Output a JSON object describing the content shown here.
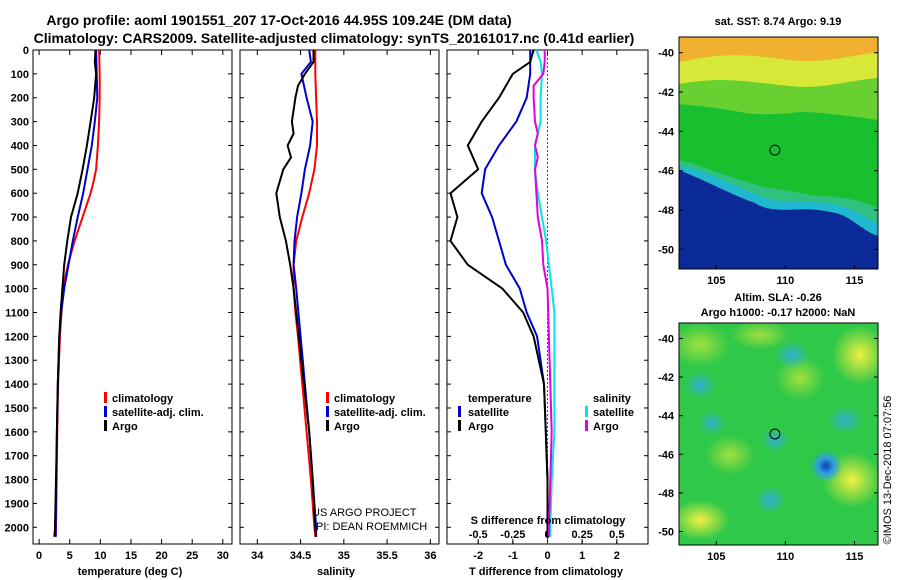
{
  "header": {
    "title_line1": "Argo profile: aoml 1901551_207 17-Oct-2016 44.95S 109.24E (DM data)",
    "title_line2": "Climatology: CARS2009. Satellite-adjusted climatology: synTS_20161017.nc (0.41d earlier)"
  },
  "colors": {
    "climatology": "#ff0000",
    "satellite_adj": "#0000cc",
    "argo": "#000000",
    "sal_satellite": "#00e5e5",
    "sal_argo": "#e000e0",
    "zero_line": "#ff0000"
  },
  "chart_data": [
    {
      "id": "temperature",
      "type": "line",
      "xlabel": "temperature (deg C)",
      "ylabel": "",
      "xlim": [
        -1,
        31.5
      ],
      "ylim": [
        2070,
        0
      ],
      "xticks": [
        0,
        5,
        10,
        15,
        20,
        25,
        30
      ],
      "yticks": [
        0,
        100,
        200,
        300,
        400,
        500,
        600,
        700,
        800,
        900,
        1000,
        1100,
        1200,
        1300,
        1400,
        1500,
        1600,
        1700,
        1800,
        1900,
        2000
      ],
      "legend": [
        "climatology",
        "satellite-adj. clim.",
        "Argo"
      ],
      "series": [
        {
          "name": "climatology",
          "color_key": "climatology",
          "depth": [
            0,
            100,
            200,
            300,
            400,
            500,
            550,
            600,
            700,
            800,
            900,
            1000,
            1200,
            1400,
            1600,
            1800,
            2000,
            2040
          ],
          "values": [
            9.8,
            9.9,
            9.9,
            9.8,
            9.6,
            9.3,
            8.9,
            8.4,
            7.1,
            5.8,
            4.7,
            3.9,
            3.4,
            3.1,
            2.95,
            2.85,
            2.75,
            2.7
          ]
        },
        {
          "name": "satellite-adj. clim.",
          "color_key": "satellite_adj",
          "depth": [
            0,
            100,
            200,
            300,
            400,
            500,
            600,
            700,
            800,
            900,
            1000,
            1100,
            1200,
            1400,
            1600,
            1800,
            2000,
            2040
          ],
          "values": [
            9.3,
            9.4,
            9.5,
            9.1,
            8.6,
            7.9,
            7.2,
            6.3,
            5.5,
            4.8,
            4.1,
            3.6,
            3.3,
            3.05,
            2.9,
            2.8,
            2.7,
            2.7
          ]
        },
        {
          "name": "Argo",
          "color_key": "argo",
          "depth": [
            0,
            50,
            100,
            200,
            300,
            400,
            500,
            600,
            700,
            800,
            900,
            1000,
            1100,
            1200,
            1400,
            1600,
            1800,
            2000,
            2040
          ],
          "values": [
            9.2,
            9.1,
            9.3,
            9.0,
            8.4,
            7.8,
            7.1,
            6.3,
            5.2,
            4.6,
            4.1,
            3.8,
            3.5,
            3.3,
            3.05,
            2.9,
            2.75,
            2.6,
            2.5
          ]
        }
      ]
    },
    {
      "id": "salinity",
      "type": "line",
      "xlabel": "salinity",
      "ylabel": "",
      "xlim": [
        33.8,
        36.1
      ],
      "ylim": [
        2070,
        0
      ],
      "xticks": [
        34,
        34.5,
        35,
        35.5,
        36
      ],
      "xticklabels": [
        "34",
        "34.5",
        "35",
        "35.5",
        "36"
      ],
      "legend": [
        "climatology",
        "satellite-adj. clim.",
        "Argo"
      ],
      "annotations": [
        "US ARGO PROJECT",
        "PI: DEAN ROEMMICH"
      ],
      "series": [
        {
          "name": "climatology",
          "color_key": "climatology",
          "depth": [
            0,
            100,
            200,
            300,
            400,
            500,
            600,
            700,
            800,
            900,
            1000,
            1100,
            1200,
            1400,
            1600,
            1800,
            2000,
            2040
          ],
          "values": [
            34.67,
            34.67,
            34.68,
            34.69,
            34.69,
            34.66,
            34.6,
            34.52,
            34.45,
            34.42,
            34.42,
            34.44,
            34.47,
            34.52,
            34.57,
            34.62,
            34.66,
            34.67
          ]
        },
        {
          "name": "satellite-adj. clim.",
          "color_key": "satellite_adj",
          "depth": [
            0,
            50,
            100,
            200,
            300,
            400,
            500,
            600,
            700,
            800,
            900,
            1000,
            1200,
            1400,
            1600,
            1800,
            2000,
            2040
          ],
          "values": [
            34.6,
            34.62,
            34.51,
            34.57,
            34.64,
            34.61,
            34.55,
            34.51,
            34.46,
            34.43,
            34.42,
            34.45,
            34.5,
            34.55,
            34.6,
            34.64,
            34.68,
            34.68
          ]
        },
        {
          "name": "Argo",
          "color_key": "argo",
          "depth": [
            0,
            50,
            100,
            150,
            200,
            300,
            350,
            400,
            450,
            500,
            600,
            700,
            800,
            900,
            1000,
            1200,
            1400,
            1600,
            1800,
            2000,
            2040
          ],
          "values": [
            34.65,
            34.65,
            34.55,
            34.47,
            34.44,
            34.4,
            34.42,
            34.35,
            34.39,
            34.3,
            34.22,
            34.26,
            34.33,
            34.38,
            34.42,
            34.48,
            34.54,
            34.6,
            34.64,
            34.67,
            34.68
          ]
        }
      ]
    },
    {
      "id": "difference",
      "type": "line",
      "xlabel": "T difference from climatology",
      "xlabel2": "S difference from climatology",
      "ylabel": "",
      "xlim": [
        -2.9,
        2.9
      ],
      "ylim": [
        2070,
        0
      ],
      "xticks": [
        -2,
        -1,
        0,
        1,
        2
      ],
      "xticks2": [
        -0.5,
        -0.25,
        0,
        0.25,
        0.5
      ],
      "xticklabels2": [
        "-0.5",
        "-0.25",
        "0",
        "0.25",
        "0.5"
      ],
      "s_scale": 4,
      "legend_temperature": [
        "temperature",
        "satellite",
        "Argo"
      ],
      "legend_salinity": [
        "salinity",
        "satellite",
        "Argo"
      ],
      "series": [
        {
          "name": "T satellite",
          "color_key": "satellite_adj",
          "depth": [
            0,
            100,
            200,
            300,
            400,
            500,
            600,
            700,
            800,
            900,
            1000,
            1100,
            1200,
            1400,
            1600,
            1800,
            2000,
            2040
          ],
          "values": [
            -0.5,
            -0.5,
            -0.6,
            -0.9,
            -1.4,
            -1.8,
            -1.9,
            -1.6,
            -1.4,
            -1.2,
            -0.8,
            -0.6,
            -0.3,
            -0.1,
            -0.05,
            0,
            0,
            0
          ]
        },
        {
          "name": "T Argo",
          "color_key": "argo",
          "depth": [
            0,
            50,
            100,
            200,
            300,
            400,
            500,
            600,
            700,
            800,
            900,
            1000,
            1100,
            1200,
            1400,
            1600,
            1800,
            2000,
            2040
          ],
          "values": [
            -0.4,
            -0.5,
            -1.0,
            -1.4,
            -1.9,
            -2.3,
            -2.0,
            -2.8,
            -2.6,
            -2.8,
            -2.3,
            -1.3,
            -0.7,
            -0.4,
            -0.1,
            -0.05,
            0,
            0,
            0
          ]
        },
        {
          "name": "S satellite",
          "color_key": "sal_satellite",
          "scale": "salinity",
          "depth": [
            0,
            50,
            100,
            200,
            300,
            400,
            500,
            600,
            700,
            800,
            900,
            1000,
            1100,
            1200,
            1400,
            1600,
            1800,
            2000,
            2040
          ],
          "values": [
            -0.08,
            -0.05,
            -0.04,
            -0.05,
            -0.05,
            -0.09,
            -0.09,
            -0.07,
            -0.04,
            -0.01,
            0.01,
            0.03,
            0.05,
            0.05,
            0.05,
            0.05,
            0.03,
            0.02,
            0.02
          ]
        },
        {
          "name": "S Argo",
          "color_key": "sal_argo",
          "scale": "salinity",
          "depth": [
            0,
            50,
            100,
            150,
            200,
            300,
            350,
            400,
            450,
            500,
            600,
            700,
            800,
            900,
            1000,
            1200,
            1400,
            1600,
            1800,
            2000,
            2040
          ],
          "values": [
            -0.02,
            -0.02,
            -0.03,
            -0.1,
            -0.1,
            -0.09,
            -0.07,
            -0.09,
            -0.07,
            -0.09,
            -0.08,
            -0.07,
            -0.04,
            -0.03,
            0,
            0.01,
            0.02,
            0.03,
            0.02,
            0.01,
            0.01
          ]
        }
      ]
    },
    {
      "id": "sst_map",
      "type": "heatmap",
      "title": "sat. SST: 8.74 Argo: 9.19",
      "xticks": [
        105,
        110,
        115
      ],
      "yticks": [
        -40,
        -42,
        -44,
        -46,
        -48,
        -50
      ],
      "xlim": [
        102.3,
        116.7
      ],
      "ylim": [
        -51,
        -39.2
      ],
      "marker": {
        "lon": 109.24,
        "lat": -44.95
      }
    },
    {
      "id": "sla_map",
      "type": "heatmap",
      "title": "Altim. SLA: -0.26",
      "subtitle": "Argo h1000: -0.17 h2000: NaN",
      "xticks": [
        105,
        110,
        115
      ],
      "yticks": [
        -40,
        -42,
        -44,
        -46,
        -48,
        -50
      ],
      "xlim": [
        102.3,
        116.7
      ],
      "ylim": [
        -50.7,
        -39.2
      ],
      "marker": {
        "lon": 109.24,
        "lat": -44.95
      }
    }
  ],
  "footer_stamp": "©IMOS 13-Dec-2018 07:07:56"
}
